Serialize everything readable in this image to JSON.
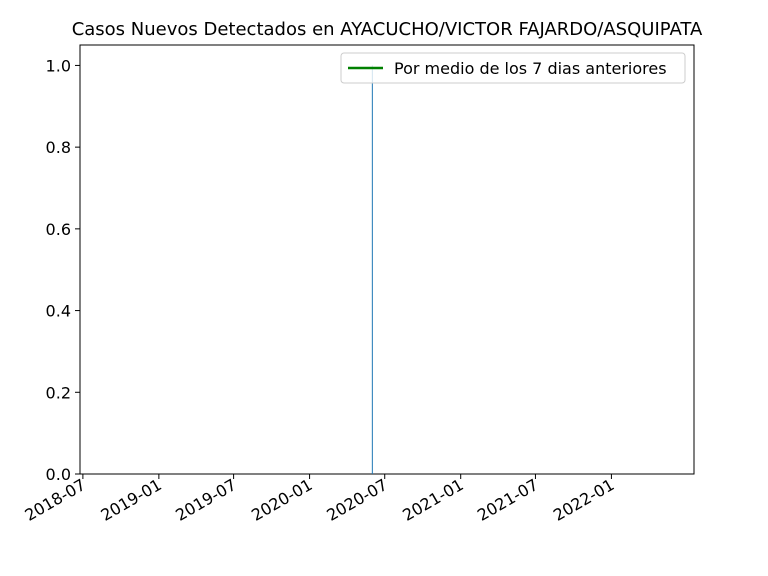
{
  "chart_data": {
    "type": "bar",
    "title": "Casos Nuevos Detectados en AYACUCHO/VICTOR FAJARDO/ASQUIPATA",
    "xlabel": "",
    "ylabel": "",
    "x_axis_type": "date",
    "xlim": [
      "2018-06-24",
      "2022-07-20"
    ],
    "ylim": [
      0,
      1.05
    ],
    "x_ticks": [
      "2018-07",
      "2019-01",
      "2019-07",
      "2020-01",
      "2020-07",
      "2021-01",
      "2021-07",
      "2022-01"
    ],
    "y_ticks": [
      0.0,
      0.2,
      0.4,
      0.6,
      0.8,
      1.0
    ],
    "y_tick_labels": [
      "0.0",
      "0.2",
      "0.4",
      "0.6",
      "0.8",
      "1.0"
    ],
    "series": [
      {
        "kind": "bar",
        "color": "#1f77b4",
        "x": [
          "2020-06-01"
        ],
        "values": [
          1
        ]
      },
      {
        "kind": "line",
        "name": "Por medio de los 7 dias anteriores",
        "color": "#008000",
        "x": [],
        "values": []
      }
    ],
    "legend": {
      "position": "top-right",
      "entries": [
        "Por medio de los 7 dias anteriores"
      ]
    },
    "grid": false
  }
}
